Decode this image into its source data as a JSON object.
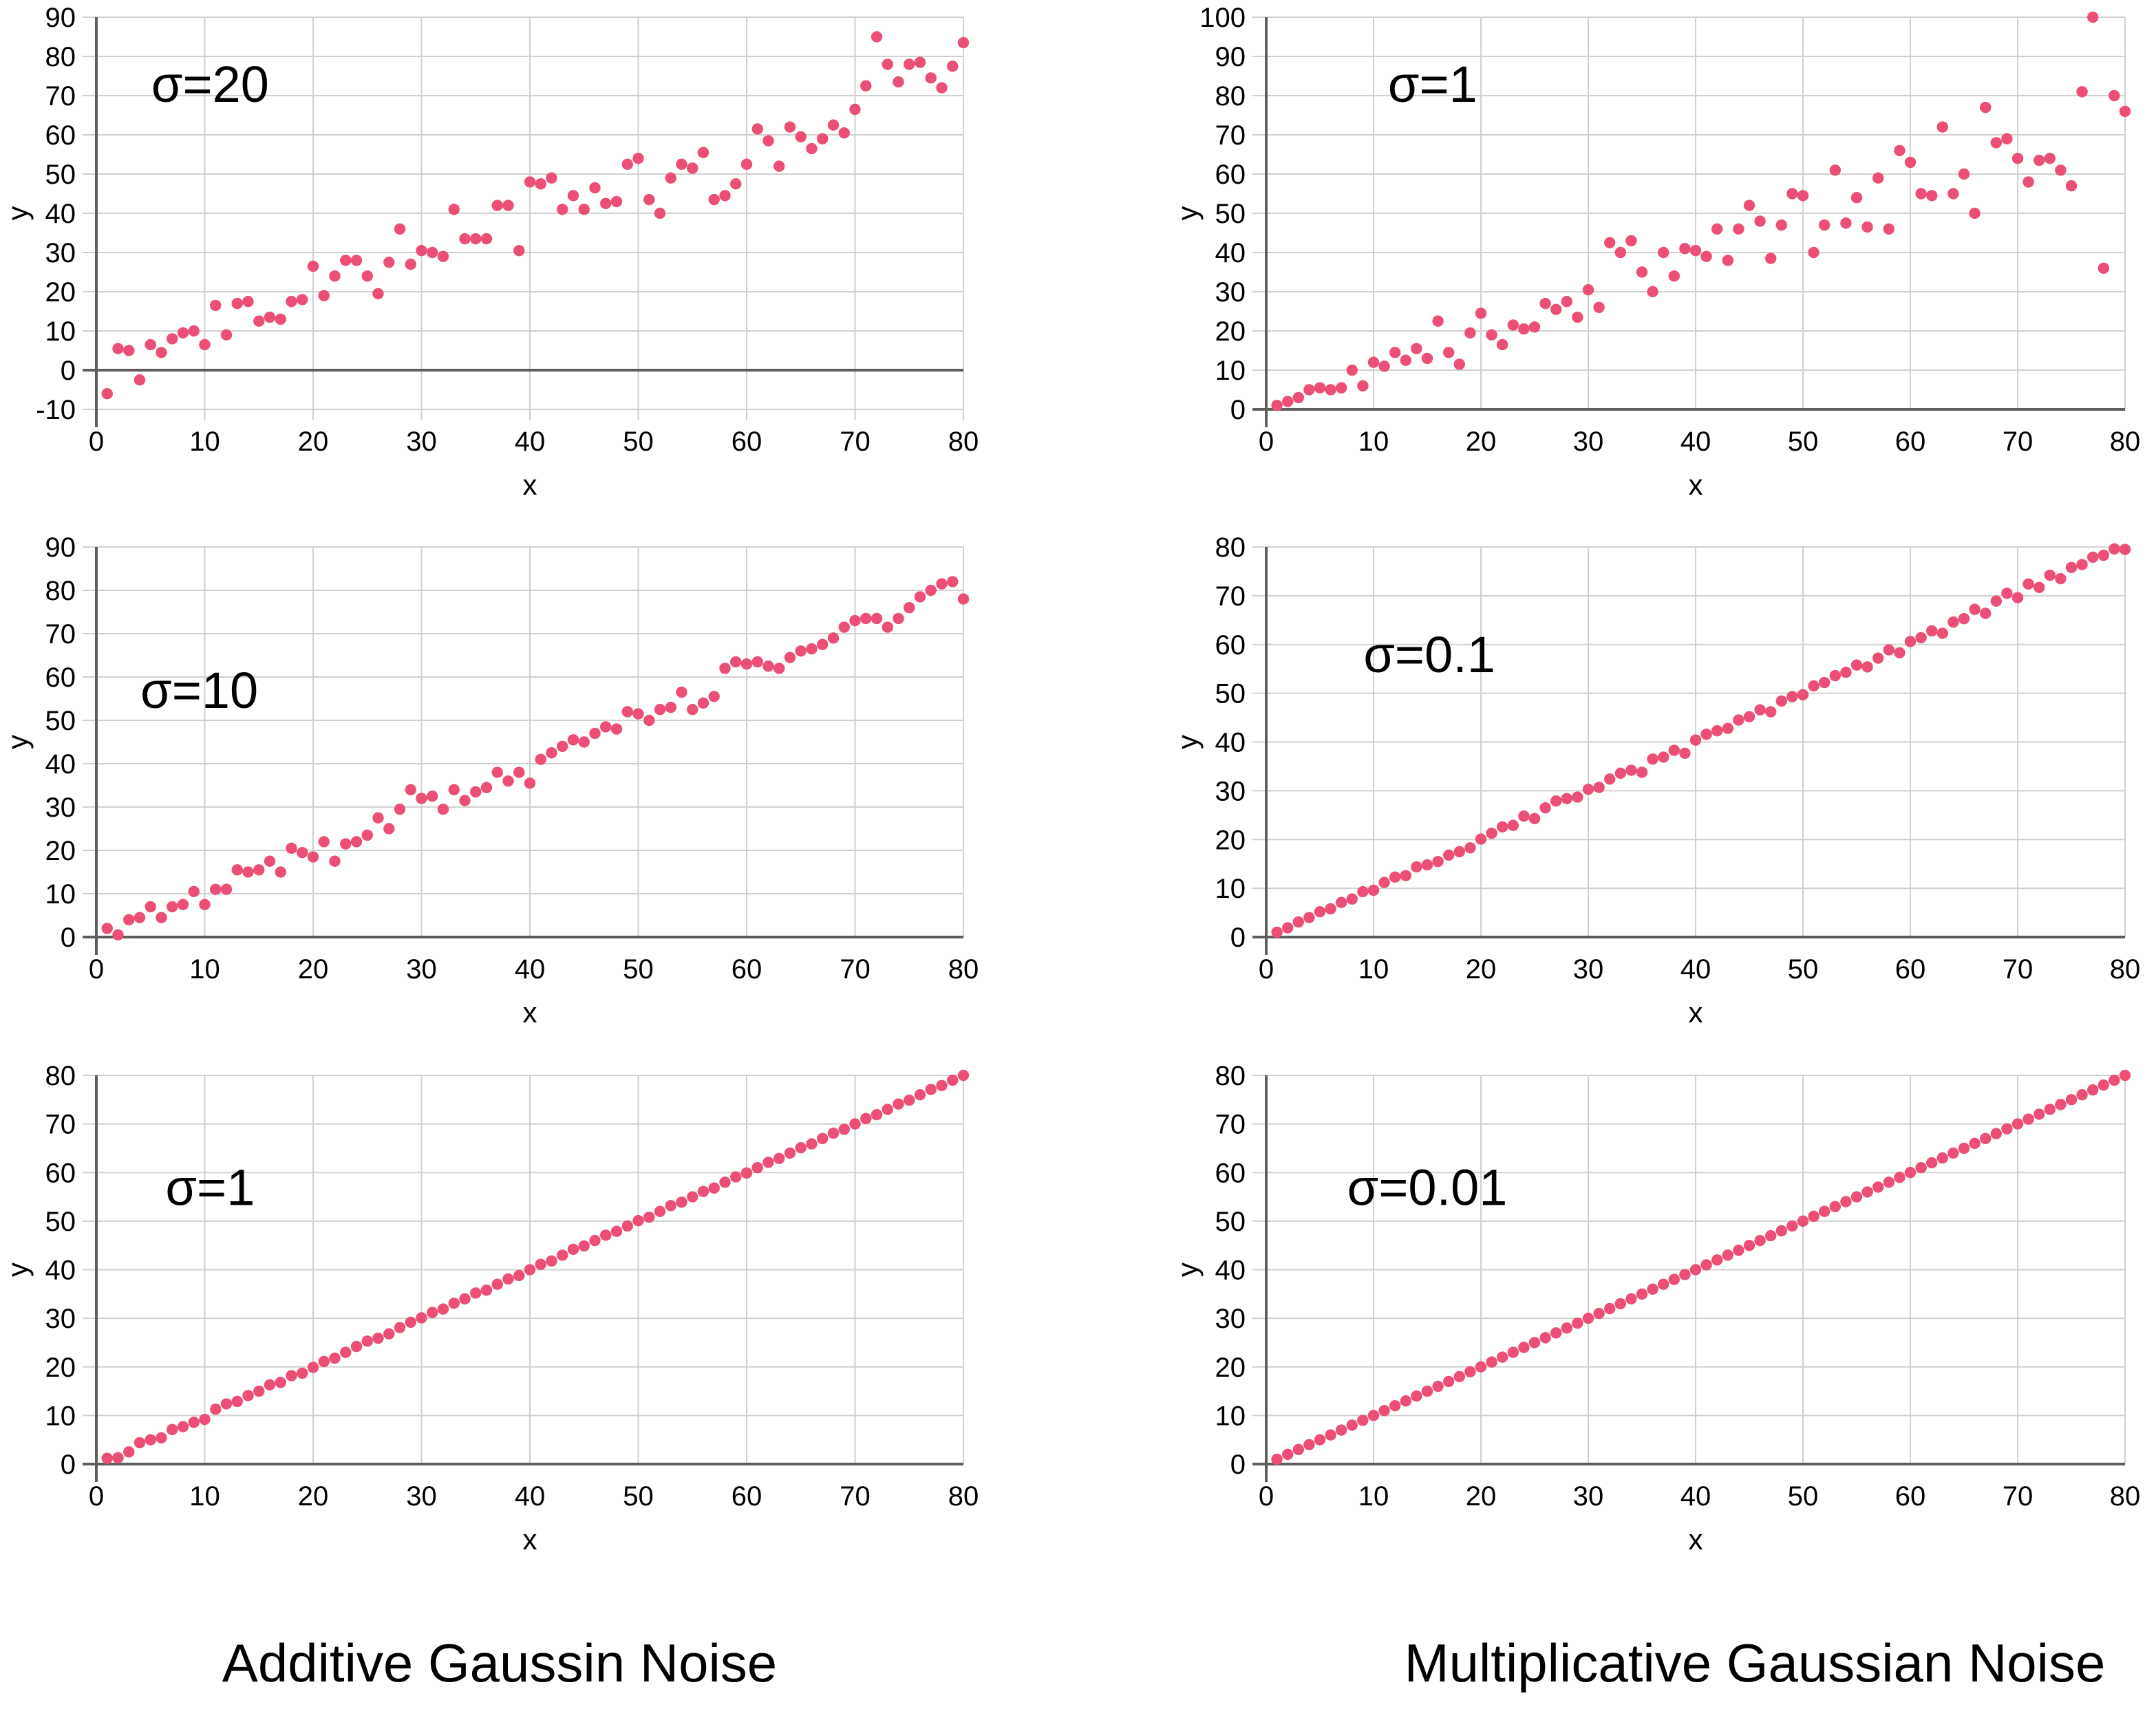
{
  "figure": {
    "captions": {
      "left": "Additive Gaussin Noise",
      "right": "Multiplicative Gaussian Noise"
    }
  },
  "colors": {
    "point": "#EB4F75",
    "grid": "#D0D0D0",
    "axis": "#5E5E5E",
    "text": "#000000",
    "background": "#FFFFFF"
  },
  "x_values": [
    1,
    2,
    3,
    4,
    5,
    6,
    7,
    8,
    9,
    10,
    11,
    12,
    13,
    14,
    15,
    16,
    17,
    18,
    19,
    20,
    21,
    22,
    23,
    24,
    25,
    26,
    27,
    28,
    29,
    30,
    31,
    32,
    33,
    34,
    35,
    36,
    37,
    38,
    39,
    40,
    41,
    42,
    43,
    44,
    45,
    46,
    47,
    48,
    49,
    50,
    51,
    52,
    53,
    54,
    55,
    56,
    57,
    58,
    59,
    60,
    61,
    62,
    63,
    64,
    65,
    66,
    67,
    68,
    69,
    70,
    71,
    72,
    73,
    74,
    75,
    76,
    77,
    78,
    79,
    80
  ],
  "chart_data": [
    {
      "type": "scatter",
      "id": "additive-sigma-20",
      "column": "left",
      "row": 0,
      "annotation": "σ=20",
      "annotation_pos": {
        "x": 10.5,
        "y": 73
      },
      "xlabel": "x",
      "ylabel": "y",
      "xlim": [
        0,
        80
      ],
      "ylim": [
        -10,
        90
      ],
      "xticks": [
        0,
        10,
        20,
        30,
        40,
        50,
        60,
        70,
        80
      ],
      "yticks": [
        -10,
        0,
        10,
        20,
        30,
        40,
        50,
        60,
        70,
        80,
        90
      ],
      "zero_line": 0,
      "y": [
        -6,
        5.5,
        5,
        -2.5,
        6.5,
        4.5,
        8,
        9.5,
        10,
        6.5,
        16.5,
        9,
        17,
        17.5,
        12.5,
        13.5,
        13,
        17.5,
        18,
        26.5,
        19,
        24,
        28,
        28,
        24,
        19.5,
        27.5,
        36,
        27,
        30.5,
        30,
        29,
        41,
        33.5,
        33.5,
        33.5,
        42,
        42,
        30.5,
        48,
        47.5,
        49,
        41,
        44.5,
        41,
        46.5,
        42.5,
        43,
        52.5,
        54,
        43.5,
        40,
        49,
        52.5,
        51.5,
        55.5,
        43.5,
        44.5,
        47.5,
        52.5,
        61.5,
        58.5,
        52,
        62,
        59.5,
        56.5,
        59,
        62.5,
        60.5,
        66.5,
        72.5,
        85,
        78,
        73.5,
        78,
        78.5,
        74.5,
        72,
        77.5,
        83.5
      ]
    },
    {
      "type": "scatter",
      "id": "multiplicative-sigma-1",
      "column": "right",
      "row": 0,
      "annotation": "σ=1",
      "annotation_pos": {
        "x": 15.5,
        "y": 83
      },
      "xlabel": "x",
      "ylabel": "y",
      "xlim": [
        0,
        80
      ],
      "ylim": [
        0,
        100
      ],
      "xticks": [
        0,
        10,
        20,
        30,
        40,
        50,
        60,
        70,
        80
      ],
      "yticks": [
        0,
        10,
        20,
        30,
        40,
        50,
        60,
        70,
        80,
        90,
        100
      ],
      "zero_line": 0,
      "y": [
        1,
        2,
        3,
        5,
        5.5,
        5,
        5.5,
        10,
        6,
        12,
        11,
        14.5,
        12.5,
        15.5,
        13,
        22.5,
        14.5,
        11.5,
        19.5,
        24.5,
        19,
        16.5,
        21.5,
        20.5,
        21,
        27,
        25.5,
        27.5,
        23.5,
        30.5,
        26,
        42.5,
        40,
        43,
        35,
        30,
        40,
        34,
        41,
        40.5,
        39,
        46,
        38,
        46,
        52,
        48,
        38.5,
        47,
        55,
        54.5,
        40,
        47,
        61,
        47.5,
        54,
        46.5,
        59,
        46,
        66,
        63,
        55,
        54.5,
        72,
        55,
        60,
        50,
        77,
        68,
        69,
        64,
        58,
        63.5,
        64,
        61,
        57,
        81,
        100,
        36,
        80,
        76
      ]
    },
    {
      "type": "scatter",
      "id": "additive-sigma-10",
      "column": "left",
      "row": 1,
      "annotation": "σ=10",
      "annotation_pos": {
        "x": 9.5,
        "y": 57
      },
      "xlabel": "x",
      "ylabel": "y",
      "xlim": [
        0,
        80
      ],
      "ylim": [
        0,
        90
      ],
      "xticks": [
        0,
        10,
        20,
        30,
        40,
        50,
        60,
        70,
        80
      ],
      "yticks": [
        0,
        10,
        20,
        30,
        40,
        50,
        60,
        70,
        80,
        90
      ],
      "zero_line": 0,
      "y": [
        2,
        0.5,
        4,
        4.5,
        7,
        4.5,
        7,
        7.5,
        10.5,
        7.5,
        11,
        11,
        15.5,
        15,
        15.5,
        17.5,
        15,
        20.5,
        19.5,
        18.5,
        22,
        17.5,
        21.5,
        22,
        23.5,
        27.5,
        25,
        29.5,
        34,
        32,
        32.5,
        29.5,
        34,
        31.5,
        33.5,
        34.5,
        38,
        36,
        38,
        35.5,
        41,
        42.5,
        44,
        45.5,
        45,
        47,
        48.5,
        48,
        52,
        51.5,
        50,
        52.5,
        53,
        56.5,
        52.5,
        54,
        55.5,
        62,
        63.5,
        63,
        63.5,
        62.5,
        62,
        64.5,
        66,
        66.5,
        67.5,
        69,
        71.5,
        73,
        73.5,
        73.5,
        71.5,
        73.5,
        76,
        78.5,
        80,
        81.5,
        82,
        78
      ]
    },
    {
      "type": "scatter",
      "id": "multiplicative-sigma-0-1",
      "column": "right",
      "row": 1,
      "annotation": "σ=0.1",
      "annotation_pos": {
        "x": 15.2,
        "y": 58
      },
      "xlabel": "x",
      "ylabel": "y",
      "xlim": [
        0,
        80
      ],
      "ylim": [
        0,
        80
      ],
      "xticks": [
        0,
        10,
        20,
        30,
        40,
        50,
        60,
        70,
        80
      ],
      "yticks": [
        0,
        10,
        20,
        30,
        40,
        50,
        60,
        70,
        80
      ],
      "zero_line": 0,
      "y": [
        1,
        1.9,
        3.1,
        4,
        5.2,
        5.8,
        7.1,
        7.8,
        9.3,
        9.6,
        11.2,
        12.3,
        12.6,
        14.4,
        14.8,
        15.5,
        16.8,
        17.5,
        18.3,
        20.1,
        21.3,
        22.6,
        22.9,
        24.8,
        24.3,
        26.5,
        27.9,
        28.4,
        28.7,
        30.3,
        30.7,
        32.4,
        33.6,
        34.2,
        33.8,
        36.5,
        36.9,
        38.3,
        37.7,
        40.4,
        41.6,
        42.3,
        42.8,
        44.5,
        45.2,
        46.6,
        46.2,
        48.4,
        49.3,
        49.7,
        51.5,
        52.2,
        53.6,
        54.3,
        55.8,
        55.4,
        57.2,
        58.9,
        58.3,
        60.6,
        61.4,
        62.8,
        62.3,
        64.6,
        65.3,
        67.2,
        66.4,
        68.9,
        70.5,
        69.6,
        72.4,
        71.7,
        74.2,
        73.5,
        75.8,
        76.4,
        77.9,
        78.3,
        79.6,
        79.5
      ]
    },
    {
      "type": "scatter",
      "id": "additive-sigma-1",
      "column": "left",
      "row": 2,
      "annotation": "σ=1",
      "annotation_pos": {
        "x": 10.5,
        "y": 57
      },
      "xlabel": "x",
      "ylabel": "y",
      "xlim": [
        0,
        80
      ],
      "ylim": [
        0,
        80
      ],
      "xticks": [
        0,
        10,
        20,
        30,
        40,
        50,
        60,
        70,
        80
      ],
      "yticks": [
        0,
        10,
        20,
        30,
        40,
        50,
        60,
        70,
        80
      ],
      "zero_line": 0,
      "y": [
        1.2,
        1.3,
        2.5,
        4.4,
        5,
        5.4,
        7.1,
        7.7,
        8.6,
        9.2,
        11.3,
        12.4,
        12.9,
        14.1,
        15,
        16.3,
        16.8,
        18.2,
        18.7,
        19.9,
        21.1,
        21.8,
        23,
        24.2,
        25.3,
        25.9,
        26.8,
        28.1,
        29.2,
        30.1,
        31.2,
        31.9,
        33.1,
        34,
        35.2,
        35.8,
        37,
        38.1,
        38.8,
        40,
        41.1,
        41.8,
        43,
        44.2,
        44.9,
        46,
        47.1,
        47.9,
        49,
        50.1,
        50.8,
        52,
        53.2,
        53.9,
        55,
        56.1,
        56.8,
        58,
        59.1,
        59.9,
        61,
        62.1,
        62.9,
        64,
        65.1,
        65.9,
        67,
        68.1,
        68.9,
        70,
        71.1,
        71.9,
        73,
        74.1,
        74.9,
        76,
        77.1,
        77.9,
        79,
        80
      ]
    },
    {
      "type": "scatter",
      "id": "multiplicative-sigma-0-01",
      "column": "right",
      "row": 2,
      "annotation": "σ=0.01",
      "annotation_pos": {
        "x": 15,
        "y": 57
      },
      "xlabel": "x",
      "ylabel": "y",
      "xlim": [
        0,
        80
      ],
      "ylim": [
        0,
        80
      ],
      "xticks": [
        0,
        10,
        20,
        30,
        40,
        50,
        60,
        70,
        80
      ],
      "yticks": [
        0,
        10,
        20,
        30,
        40,
        50,
        60,
        70,
        80
      ],
      "zero_line": 0,
      "y": [
        1,
        2,
        3,
        4,
        5,
        6,
        7,
        8,
        9,
        10,
        11,
        12,
        13,
        14,
        15,
        16,
        17,
        18,
        19,
        20,
        21,
        22,
        23,
        24,
        25,
        26,
        27,
        28,
        29,
        30,
        31,
        32,
        33,
        34,
        35,
        36,
        37,
        38,
        39,
        40,
        41,
        42,
        43,
        44,
        45,
        46,
        47,
        48,
        49,
        50,
        51,
        52,
        53,
        54,
        55,
        56,
        57,
        58,
        59,
        60,
        61,
        62,
        63,
        64,
        65,
        66,
        67,
        68,
        69,
        70,
        71,
        72,
        73,
        74,
        75,
        76,
        77,
        78,
        79,
        80
      ]
    }
  ]
}
